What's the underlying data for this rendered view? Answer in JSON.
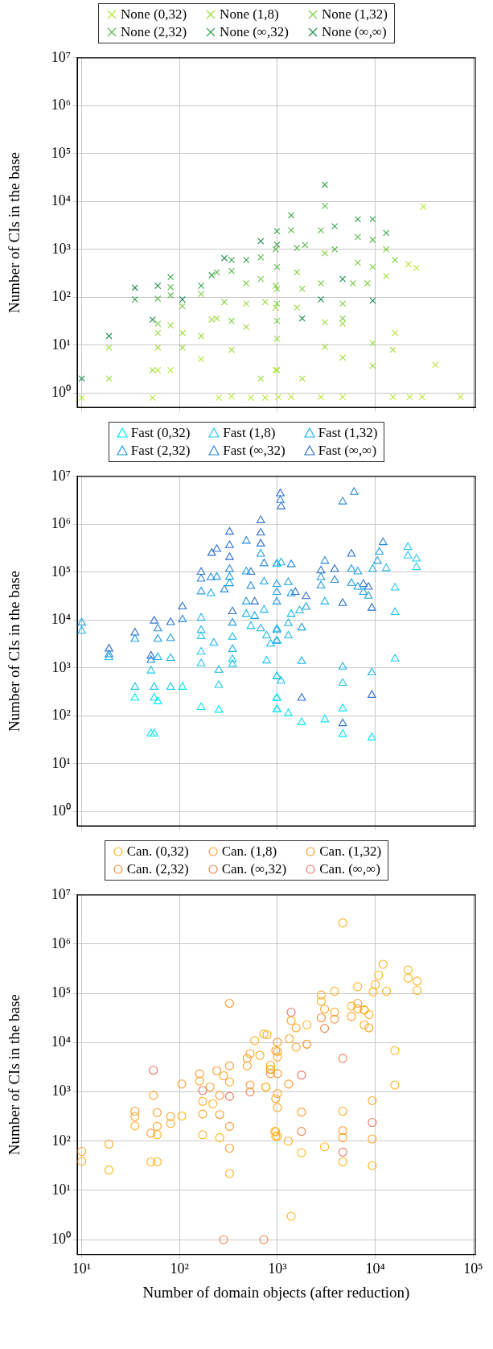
{
  "chart_data": [
    {
      "type": "scatter",
      "ylabel": "Number of CIs in the base",
      "log": "xy",
      "grid": true,
      "legend": "top",
      "marker": "cross",
      "tick_labels": "y",
      "xlim": [
        9,
        105000
      ],
      "ylim": [
        0.5,
        10000000
      ],
      "xticks": [
        {
          "value": 10,
          "label": null
        },
        {
          "value": 100,
          "label": null
        },
        {
          "value": 1000,
          "label": null
        },
        {
          "value": 10000,
          "label": null
        },
        {
          "value": 100000,
          "label": null
        }
      ],
      "yticks": [
        {
          "value": 1,
          "label": "10⁰"
        },
        {
          "value": 10,
          "label": "10¹"
        },
        {
          "value": 100,
          "label": "10²"
        },
        {
          "value": 1000,
          "label": "10³"
        },
        {
          "value": 10000,
          "label": "10⁴"
        },
        {
          "value": 100000,
          "label": "10⁵"
        },
        {
          "value": 1000000,
          "label": "10⁶"
        },
        {
          "value": 10000000,
          "label": "10⁷"
        }
      ],
      "series": [
        {
          "name": "None (0,32)",
          "color": "#b7e835",
          "x": [
            10,
            53,
            60,
            81,
            166,
            252,
            340,
            535,
            750,
            960,
            1020,
            1380,
            2780,
            4640,
            15100,
            15900,
            21800,
            26300,
            31000,
            41000,
            74000,
            22500,
            30000
          ],
          "values": [
            0.8,
            0.8,
            3,
            3,
            5.1,
            0.8,
            0.85,
            0.8,
            0.8,
            3,
            0.83,
            0.83,
            0.83,
            0.83,
            0.83,
            18,
            490,
            407,
            7800,
            3.9,
            0.83,
            0.83,
            0.83
          ]
        },
        {
          "name": "None (1,8)",
          "color": "#9cdc3a",
          "x": [
            19,
            19,
            53,
            60,
            60,
            81,
            107,
            107,
            166,
            213,
            240,
            340,
            480,
            480,
            675,
            750,
            960,
            990,
            990,
            1580,
            1790,
            3050,
            3050,
            4640,
            4640,
            9400,
            9400,
            15100,
            12900
          ],
          "values": [
            8.9,
            2,
            3,
            8.9,
            18,
            26,
            8.9,
            18,
            15.5,
            34,
            36,
            8,
            74,
            24,
            2,
            79,
            61,
            13.6,
            3,
            61,
            2,
            9.2,
            30,
            5.5,
            28,
            11,
            3.7,
            8,
            275
          ]
        },
        {
          "name": "None (1,32)",
          "color": "#7cce40",
          "x": [
            60,
            107,
            166,
            287,
            340,
            480,
            675,
            960,
            990,
            990,
            990,
            1580,
            1790,
            2780,
            3050,
            4640,
            4640,
            6620,
            9400,
            5900,
            8300,
            12900,
            15900
          ],
          "values": [
            28,
            65,
            117,
            79,
            32,
            195,
            240,
            174,
            32,
            74,
            150,
            331,
            150,
            195,
            830,
            74,
            36,
            525,
            430,
            195,
            195,
            1000,
            600
          ]
        },
        {
          "name": "None (2,32)",
          "color": "#55bb45",
          "x": [
            60,
            81,
            81,
            240,
            340,
            675,
            960,
            990,
            1380,
            1580,
            1910,
            2780,
            3050,
            3840,
            6620,
            9400
          ],
          "values": [
            93,
            162,
            110,
            331,
            355,
            680,
            1000,
            430,
            2500,
            1070,
            1230,
            2500,
            8100,
            1000,
            1820,
            1580
          ]
        },
        {
          "name": "None (∞,32)",
          "color": "#33a54a",
          "x": [
            35,
            81,
            166,
            213,
            340,
            480,
            990,
            990,
            1380,
            3050,
            3840,
            6620,
            9400,
            12900
          ],
          "values": [
            90,
            263,
            174,
            290,
            600,
            600,
            2400,
            1260,
            5100,
            22400,
            3030,
            4250,
            4250,
            2200
          ]
        },
        {
          "name": "None (∞,∞)",
          "color": "#1a8c4e",
          "x": [
            10,
            19,
            35,
            53,
            60,
            107,
            287,
            675,
            1790,
            2780,
            4640,
            9400
          ],
          "values": [
            2,
            15.5,
            158,
            34,
            174,
            90,
            655,
            1480,
            36,
            90,
            240,
            85
          ]
        }
      ]
    },
    {
      "type": "scatter",
      "ylabel": "Number of CIs in the base",
      "log": "xy",
      "grid": true,
      "legend": "top",
      "marker": "triangle",
      "tick_labels": "y",
      "xlim": [
        9,
        105000
      ],
      "ylim": [
        0.5,
        10000000
      ],
      "xticks": [
        {
          "value": 10,
          "label": null
        },
        {
          "value": 100,
          "label": null
        },
        {
          "value": 1000,
          "label": null
        },
        {
          "value": 10000,
          "label": null
        },
        {
          "value": 100000,
          "label": null
        }
      ],
      "yticks": [
        {
          "value": 1,
          "label": "10⁰"
        },
        {
          "value": 10,
          "label": "10¹"
        },
        {
          "value": 100,
          "label": "10²"
        },
        {
          "value": 1000,
          "label": "10³"
        },
        {
          "value": 10000,
          "label": "10⁴"
        },
        {
          "value": 100000,
          "label": "10⁵"
        },
        {
          "value": 1000000,
          "label": "10⁶"
        },
        {
          "value": 10000000,
          "label": "10⁷"
        }
      ],
      "series": [
        {
          "name": "Fast (0,32)",
          "color": "#00e6f6",
          "x": [
            51,
            55,
            35,
            55,
            60,
            107,
            166,
            252,
            985,
            985,
            990,
            990,
            1290,
            1770,
            3050,
            4640,
            4640,
            9200
          ],
          "values": [
            42,
            42,
            235,
            235,
            200,
            398,
            150,
            132,
            235,
            135,
            235,
            135,
            112,
            73,
            83,
            141,
            41,
            35
          ]
        },
        {
          "name": "Fast (1,8)",
          "color": "#20c8f0",
          "x": [
            35,
            51,
            55,
            81,
            166,
            166,
            166,
            252,
            347,
            347,
            775,
            985,
            990,
            1090,
            4640,
            15900,
            15900,
            15900,
            21500,
            21500,
            26300,
            26300
          ],
          "values": [
            398,
            870,
            398,
            398,
            4550,
            2150,
            1230,
            435,
            1510,
            1200,
            1410,
            665,
            665,
            535,
            480,
            14500,
            1550,
            47000,
            331000,
            219000,
            190000,
            126000
          ]
        },
        {
          "name": "Fast (1,32)",
          "color": "#1ab4e8",
          "x": [
            10,
            19,
            60,
            81,
            166,
            166,
            209,
            252,
            224,
            347,
            347,
            480,
            535,
            730,
            675,
            775,
            985,
            985,
            1090,
            990,
            850,
            1680,
            1380,
            1290,
            1290,
            990,
            990,
            1770,
            3050,
            4640,
            9200,
            12900,
            9400
          ],
          "values": [
            5900,
            1660,
            1660,
            1590,
            11000,
            6100,
            36000,
            900,
            3300,
            4400,
            2450,
            13200,
            7400,
            16200,
            6600,
            4700,
            6100,
            3720,
            158000,
            148000,
            3160,
            15800,
            13200,
            8500,
            4700,
            6500,
            3630,
            1380,
            24000,
            1050,
            795,
            120000,
            115000
          ]
        },
        {
          "name": "Fast (2,32)",
          "color": "#1e9fe0",
          "x": [
            10,
            35,
            60,
            81,
            166,
            240,
            324,
            324,
            347,
            480,
            480,
            585,
            675,
            730,
            985,
            985,
            985,
            1290,
            1380,
            1960,
            1770,
            2780,
            2780,
            5700,
            6620,
            5700,
            6620,
            7550,
            8500,
            11000,
            10500
          ],
          "values": [
            8700,
            4000,
            4000,
            4150,
            39000,
            79000,
            79000,
            58000,
            8700,
            102000,
            24000,
            12000,
            240000,
            63000,
            56000,
            38000,
            24000,
            61000,
            35500,
            18600,
            6900,
            77000,
            52000,
            115000,
            102000,
            59000,
            49000,
            38000,
            31600,
            263000,
            170000
          ]
        },
        {
          "name": "Fast (∞,32)",
          "color": "#2a88d8",
          "x": [
            19,
            51,
            60,
            107,
            166,
            209,
            287,
            324,
            480,
            535,
            730,
            985,
            1380,
            4640,
            1070,
            6070,
            3050,
            3840,
            12000
          ],
          "values": [
            1900,
            1450,
            6600,
            10200,
            72000,
            77000,
            43000,
            115000,
            447000,
            51000,
            151000,
            148000,
            144000,
            2950000,
            3160000,
            4670000,
            170000,
            68000,
            417000
          ]
        },
        {
          "name": "Fast (∞,∞)",
          "color": "#2e6fcf",
          "x": [
            19,
            35,
            51,
            55,
            81,
            107,
            166,
            213,
            240,
            324,
            324,
            324,
            347,
            535,
            585,
            675,
            675,
            675,
            1070,
            1090,
            1520,
            1960,
            1770,
            2780,
            3840,
            4640,
            4640,
            5700,
            7550,
            8500,
            9200,
            9200
          ],
          "values": [
            2500,
            5400,
            1780,
            9600,
            8900,
            19000,
            100000,
            250000,
            302000,
            690000,
            363000,
            204000,
            15000,
            100000,
            24000,
            1200000,
            660000,
            390000,
            4370000,
            2340000,
            38000,
            31000,
            235,
            107000,
            115000,
            22400,
            69,
            240000,
            56000,
            49000,
            17800,
            270
          ]
        }
      ]
    },
    {
      "type": "scatter",
      "ylabel": "Number of CIs in the base",
      "xlabel": "Number of domain objects (after reduction)",
      "log": "xy",
      "grid": true,
      "legend": "top",
      "marker": "circle",
      "xlim": [
        9,
        105000
      ],
      "ylim": [
        0.5,
        10000000
      ],
      "xticks": [
        {
          "value": 10,
          "label": "10¹"
        },
        {
          "value": 100,
          "label": "10²"
        },
        {
          "value": 1000,
          "label": "10³"
        },
        {
          "value": 10000,
          "label": "10⁴"
        },
        {
          "value": 100000,
          "label": "10⁵"
        }
      ],
      "yticks": [
        {
          "value": 1,
          "label": "10⁰"
        },
        {
          "value": 10,
          "label": "10¹"
        },
        {
          "value": 100,
          "label": "10²"
        },
        {
          "value": 1000,
          "label": "10³"
        },
        {
          "value": 10000,
          "label": "10⁴"
        },
        {
          "value": 100000,
          "label": "10⁵"
        },
        {
          "value": 1000000,
          "label": "10⁶"
        },
        {
          "value": 10000000,
          "label": "10⁷"
        }
      ],
      "series": [
        {
          "name": "Can. (0,32)",
          "color": "#ffb319",
          "x": [
            10,
            19,
            35,
            51,
            59,
            59,
            81,
            105,
            172,
            219,
            257,
            324,
            585,
            725,
            760,
            960,
            960,
            940,
            1000,
            1290,
            1380,
            1760,
            2000,
            3030,
            2800,
            3830,
            4650,
            4650,
            5700,
            6600,
            9300,
            9500,
            10000,
            10800,
            12000,
            13000,
            15800,
            15800,
            21600,
            21600,
            26700,
            26700,
            7700,
            8600
          ],
          "values": [
            39,
            26,
            204,
            38,
            38,
            135,
            229,
            324,
            135,
            575,
            118,
            22,
            11000,
            15000,
            1260,
            155,
            126,
            158,
            126,
            100,
            3,
            58,
            23000,
            77,
            69000,
            110000,
            2700000,
            38,
            55000,
            137000,
            32,
            107000,
            150000,
            235000,
            390000,
            110000,
            6900,
            1380,
            300000,
            204000,
            178000,
            115000,
            46000,
            37000
          ]
        },
        {
          "name": "Can. (1,8)",
          "color": "#fea524",
          "x": [
            10,
            19,
            35,
            54,
            59,
            81,
            160,
            172,
            172,
            282,
            324,
            490,
            525,
            660,
            850,
            960,
            960,
            780,
            1000,
            1000,
            850,
            1000,
            1000,
            1380,
            1550,
            1320,
            1550,
            2000,
            2800,
            3030,
            3830,
            4650,
            4650,
            5700,
            6600,
            6600,
            7700,
            8600,
            9300,
            9300
          ],
          "values": [
            62,
            87,
            316,
            851,
            200,
            316,
            1660,
            645,
            355,
            2130,
            1590,
            3390,
            6000,
            5500,
            3470,
            6900,
            730,
            14500,
            6600,
            5100,
            2880,
            930,
            480,
            28000,
            20000,
            12000,
            8100,
            9300,
            93000,
            48000,
            41500,
            407,
            118,
            34000,
            63000,
            49000,
            23000,
            20000,
            111,
            665
          ]
        },
        {
          "name": "Can. (1,32)",
          "color": "#f99a2c",
          "x": [
            35,
            51,
            59,
            105,
            160,
            205,
            240,
            257,
            257,
            324,
            324,
            324,
            324,
            490,
            525,
            760,
            1000,
            1000,
            1300,
            1760,
            4650
          ],
          "values": [
            407,
            145,
            380,
            1445,
            2350,
            1260,
            2690,
            851,
            347,
            63000,
            3390,
            200,
            72,
            4800,
            1380,
            1260,
            10200,
            2350,
            1440,
            390,
            163
          ]
        },
        {
          "name": "Can. (2,32)",
          "color": "#f58e3b",
          "x": [
            850,
            850,
            2800,
            3830,
            7700
          ],
          "values": [
            2350,
            2880,
            32000,
            30000,
            46000
          ]
        },
        {
          "name": "Can. (∞,32)",
          "color": "#ef824d",
          "x": [
            282,
            725,
            525,
            1760,
            3030,
            4650,
            2000
          ],
          "values": [
            1,
            1,
            1000,
            158,
            19500,
            4800,
            9300
          ]
        },
        {
          "name": "Can. (∞,∞)",
          "color": "#e9735e",
          "x": [
            54,
            172,
            324,
            1380,
            1760,
            9300,
            4650
          ],
          "values": [
            2750,
            1070,
            813,
            41500,
            2200,
            240,
            60
          ]
        }
      ]
    }
  ]
}
